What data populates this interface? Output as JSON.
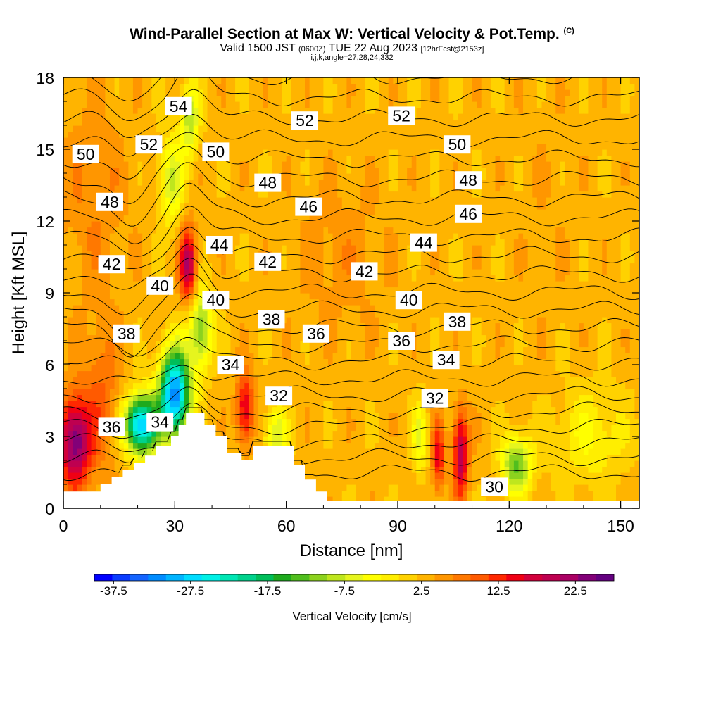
{
  "header": {
    "title": "Wind-Parallel Section at Max W: Vertical Velocity & Pot.Temp.",
    "title_tag": "(C)",
    "valid_prefix": "Valid 1500 JST",
    "valid_utc": "(0600Z)",
    "valid_date": "TUE 22 Aug 2023",
    "forecast": "[12hrFcst@2153z]",
    "indices": "i,j,k,angle=27,28,24,332"
  },
  "chart_data": {
    "type": "heatmap",
    "xlabel": "Distance [nm]",
    "ylabel": "Height [Kft MSL]",
    "xlim": [
      0,
      155
    ],
    "ylim": [
      0,
      18
    ],
    "x_ticks": [
      "0",
      "30",
      "60",
      "90",
      "120",
      "150"
    ],
    "y_ticks": [
      "0",
      "3",
      "6",
      "9",
      "12",
      "15",
      "18"
    ],
    "colorbar": {
      "label": "Vertical Velocity [cm/s]",
      "min": -40,
      "max": 27.5,
      "step": 2.5,
      "tick_labels": [
        "-37.5",
        "-27.5",
        "-17.5",
        "-7.5",
        "2.5",
        "12.5",
        "22.5"
      ],
      "colors": [
        "#0000ff",
        "#0a3cff",
        "#1464ff",
        "#008cff",
        "#00b4ff",
        "#00dcff",
        "#00f0e6",
        "#00e6b4",
        "#00d28c",
        "#00be5a",
        "#1eaa1e",
        "#50be1e",
        "#8cd21e",
        "#bee61e",
        "#e6f51e",
        "#ffff00",
        "#ffee00",
        "#ffd200",
        "#ffb400",
        "#ff9600",
        "#ff7800",
        "#ff5a00",
        "#ff2800",
        "#f00014",
        "#d2003c",
        "#be0050",
        "#aa0064",
        "#820078",
        "#640080"
      ]
    },
    "contour_field": "Potential Temperature (C)",
    "contour_labels": [
      {
        "x": 31,
        "y": 16.8,
        "text": "54"
      },
      {
        "x": 23,
        "y": 15.2,
        "text": "52"
      },
      {
        "x": 65,
        "y": 16.2,
        "text": "52"
      },
      {
        "x": 91,
        "y": 16.4,
        "text": "52"
      },
      {
        "x": 6,
        "y": 14.8,
        "text": "50"
      },
      {
        "x": 41,
        "y": 14.9,
        "text": "50"
      },
      {
        "x": 106,
        "y": 15.2,
        "text": "50"
      },
      {
        "x": 12.5,
        "y": 12.8,
        "text": "48"
      },
      {
        "x": 55,
        "y": 13.6,
        "text": "48"
      },
      {
        "x": 109,
        "y": 13.7,
        "text": "48"
      },
      {
        "x": 66,
        "y": 12.6,
        "text": "46"
      },
      {
        "x": 109,
        "y": 12.3,
        "text": "46"
      },
      {
        "x": 42,
        "y": 11.0,
        "text": "44"
      },
      {
        "x": 97,
        "y": 11.1,
        "text": "44"
      },
      {
        "x": 13,
        "y": 10.2,
        "text": "42"
      },
      {
        "x": 55,
        "y": 10.3,
        "text": "42"
      },
      {
        "x": 81,
        "y": 9.9,
        "text": "42"
      },
      {
        "x": 26,
        "y": 9.3,
        "text": "40"
      },
      {
        "x": 41,
        "y": 8.7,
        "text": "40"
      },
      {
        "x": 93,
        "y": 8.7,
        "text": "40"
      },
      {
        "x": 56,
        "y": 7.9,
        "text": "38"
      },
      {
        "x": 17,
        "y": 7.3,
        "text": "38"
      },
      {
        "x": 106,
        "y": 7.8,
        "text": "38"
      },
      {
        "x": 68,
        "y": 7.3,
        "text": "36"
      },
      {
        "x": 91,
        "y": 7.0,
        "text": "36"
      },
      {
        "x": 13,
        "y": 3.4,
        "text": "36"
      },
      {
        "x": 45,
        "y": 6.0,
        "text": "34"
      },
      {
        "x": 103,
        "y": 6.2,
        "text": "34"
      },
      {
        "x": 26,
        "y": 3.6,
        "text": "34"
      },
      {
        "x": 58,
        "y": 4.7,
        "text": "32"
      },
      {
        "x": 100,
        "y": 4.6,
        "text": "32"
      },
      {
        "x": 116,
        "y": 0.9,
        "text": "30"
      }
    ],
    "terrain_profile": [
      {
        "x": 0,
        "h": 0.7
      },
      {
        "x": 10,
        "h": 0.7
      },
      {
        "x": 10,
        "h": 1.0
      },
      {
        "x": 13,
        "h": 1.0
      },
      {
        "x": 13,
        "h": 1.3
      },
      {
        "x": 16,
        "h": 1.3
      },
      {
        "x": 16,
        "h": 1.6
      },
      {
        "x": 19,
        "h": 1.6
      },
      {
        "x": 19,
        "h": 1.9
      },
      {
        "x": 22,
        "h": 1.9
      },
      {
        "x": 22,
        "h": 2.2
      },
      {
        "x": 25,
        "h": 2.2
      },
      {
        "x": 25,
        "h": 2.6
      },
      {
        "x": 29,
        "h": 2.6
      },
      {
        "x": 29,
        "h": 3.0
      },
      {
        "x": 31,
        "h": 3.0
      },
      {
        "x": 31,
        "h": 3.5
      },
      {
        "x": 33,
        "h": 3.5
      },
      {
        "x": 33,
        "h": 4.0
      },
      {
        "x": 38,
        "h": 4.0
      },
      {
        "x": 38,
        "h": 3.5
      },
      {
        "x": 41,
        "h": 3.5
      },
      {
        "x": 41,
        "h": 3.0
      },
      {
        "x": 44,
        "h": 3.0
      },
      {
        "x": 44,
        "h": 2.3
      },
      {
        "x": 48,
        "h": 2.3
      },
      {
        "x": 48,
        "h": 2.0
      },
      {
        "x": 51,
        "h": 2.0
      },
      {
        "x": 51,
        "h": 2.6
      },
      {
        "x": 62,
        "h": 2.6
      },
      {
        "x": 62,
        "h": 1.8
      },
      {
        "x": 65,
        "h": 1.8
      },
      {
        "x": 65,
        "h": 1.2
      },
      {
        "x": 68,
        "h": 1.2
      },
      {
        "x": 68,
        "h": 0.7
      },
      {
        "x": 71,
        "h": 0.7
      },
      {
        "x": 71,
        "h": 0.3
      },
      {
        "x": 155,
        "h": 0.3
      }
    ],
    "velocity_features": [
      {
        "x": 3,
        "y": 2.8,
        "sx": 4,
        "sy": 1.8,
        "w": 27
      },
      {
        "x": 10,
        "y": 4.5,
        "sx": 5,
        "sy": 3,
        "w": 10
      },
      {
        "x": 21,
        "y": 3.5,
        "sx": 4.5,
        "sy": 1.2,
        "w": -32
      },
      {
        "x": 30,
        "y": 4.8,
        "sx": 4,
        "sy": 1.8,
        "w": -35
      },
      {
        "x": 37,
        "y": 7.5,
        "sx": 3,
        "sy": 1.6,
        "w": -14
      },
      {
        "x": 33.5,
        "y": 10.2,
        "sx": 2.2,
        "sy": 1.5,
        "w": 22
      },
      {
        "x": 29,
        "y": 13.7,
        "sx": 3.2,
        "sy": 1.8,
        "w": -8
      },
      {
        "x": 34,
        "y": 16.3,
        "sx": 2.5,
        "sy": 1.5,
        "w": -10
      },
      {
        "x": 49,
        "y": 4.2,
        "sx": 2.3,
        "sy": 1.5,
        "w": 18
      },
      {
        "x": 101,
        "y": 2.2,
        "sx": 1.6,
        "sy": 1.5,
        "w": 16
      },
      {
        "x": 107,
        "y": 2.3,
        "sx": 2,
        "sy": 1.8,
        "w": 22
      },
      {
        "x": 122,
        "y": 1.8,
        "sx": 4,
        "sy": 1.2,
        "w": -14
      },
      {
        "x": 96,
        "y": 3.0,
        "sx": 2,
        "sy": 1.5,
        "w": -6
      },
      {
        "x": 57,
        "y": 3.0,
        "sx": 3,
        "sy": 1.3,
        "w": -8
      },
      {
        "x": 8,
        "y": 13.0,
        "sx": 9,
        "sy": 4,
        "w": 7
      },
      {
        "x": 75,
        "y": 10.5,
        "sx": 12,
        "sy": 3,
        "w": 6
      },
      {
        "x": 130,
        "y": 12.5,
        "sx": 8,
        "sy": 5,
        "w": 4
      },
      {
        "x": 142,
        "y": 3.0,
        "sx": 10,
        "sy": 2,
        "w": -3
      }
    ],
    "background_w": 6
  }
}
